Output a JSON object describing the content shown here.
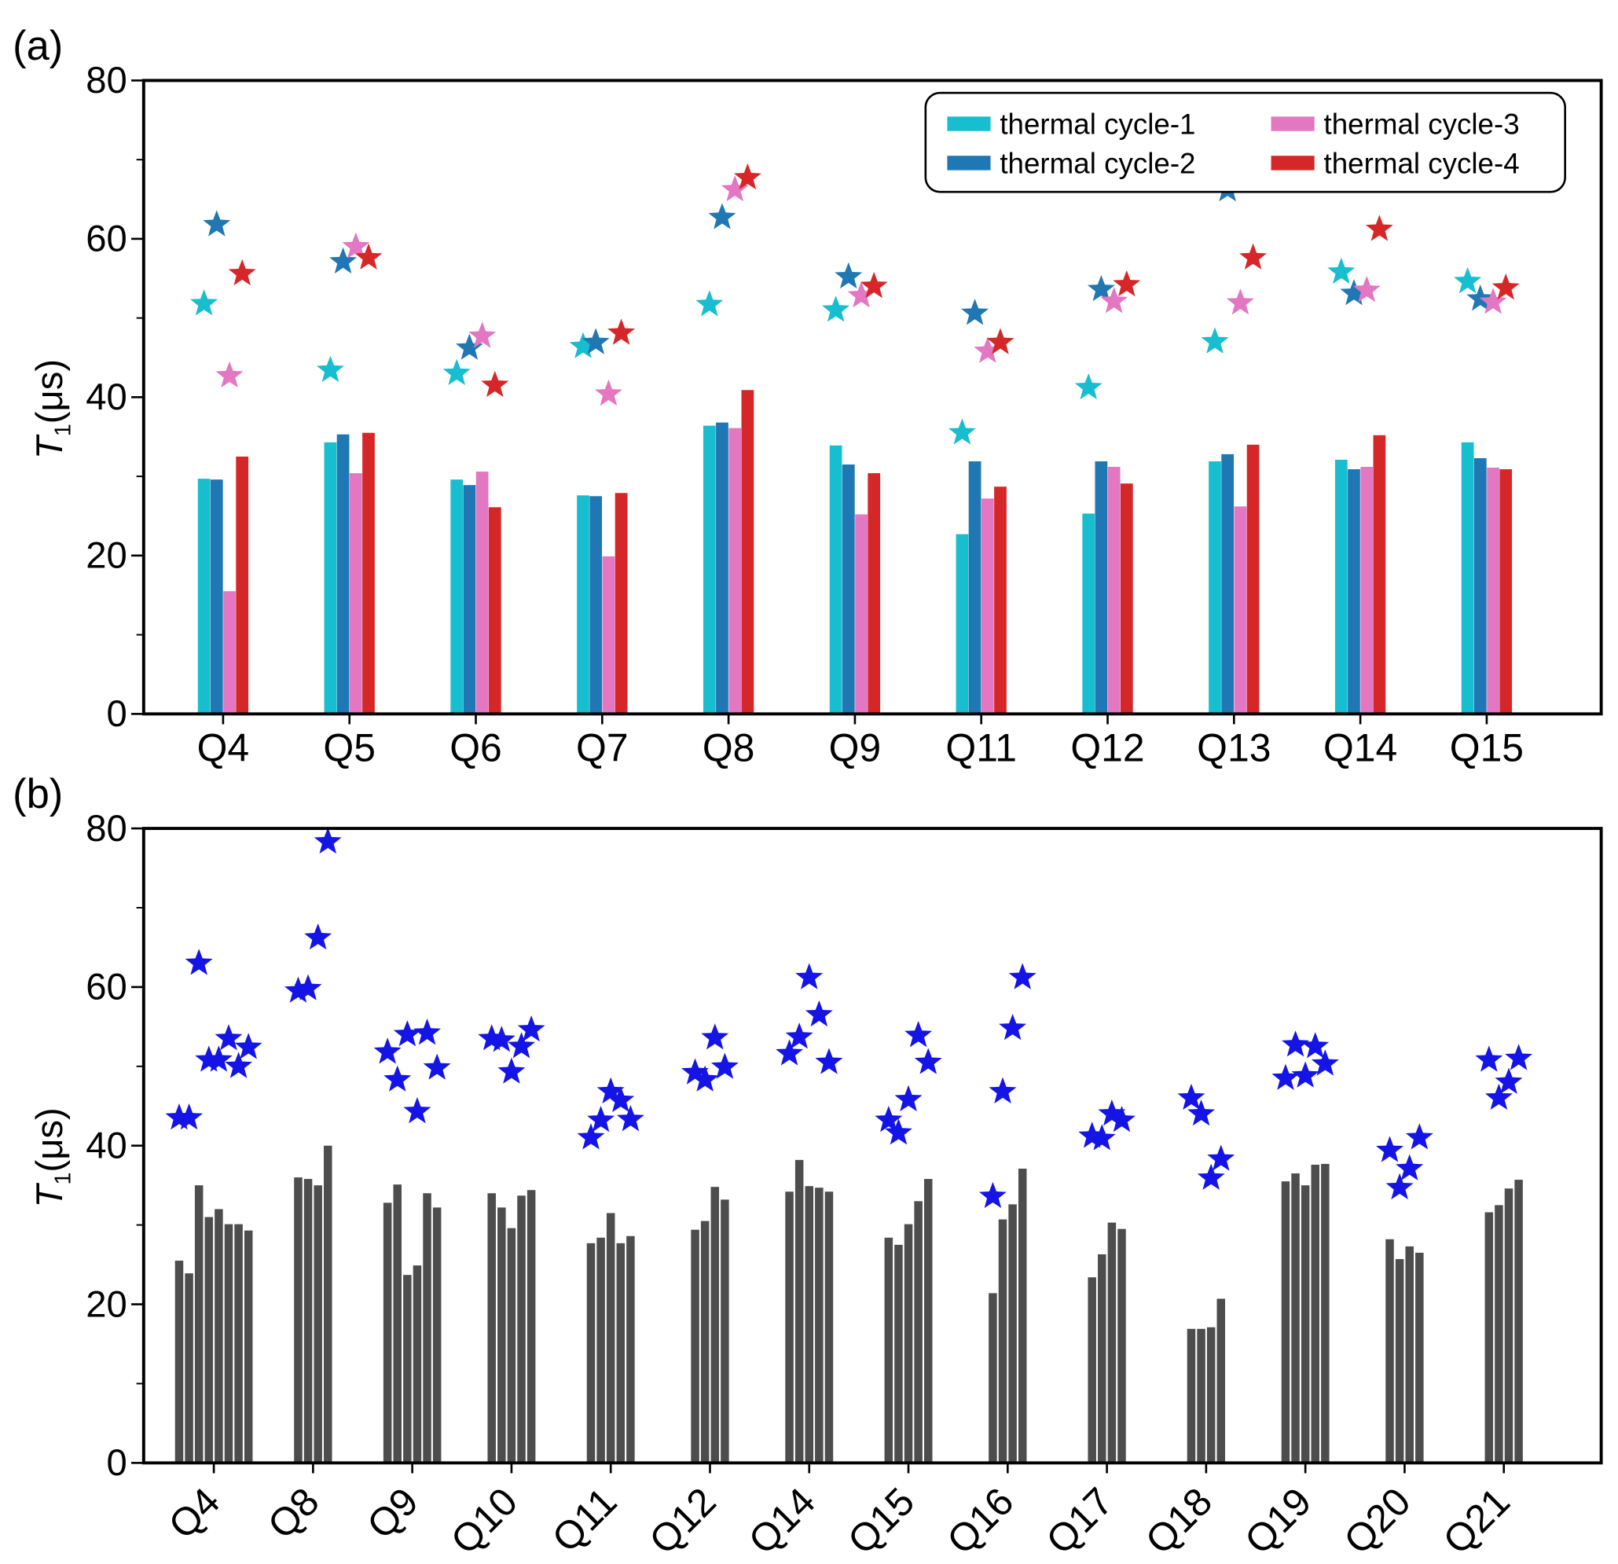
{
  "chart_data": [
    {
      "panel_label": "(a)",
      "type": "bar+scatter",
      "ylabel": "T",
      "ylabel_sub": "1",
      "ylabel_unit": "(μs)",
      "ylim": [
        0,
        80
      ],
      "yticks": [
        0,
        20,
        40,
        60,
        80
      ],
      "categories": [
        "Q4",
        "Q5",
        "Q6",
        "Q7",
        "Q8",
        "Q9",
        "Q11",
        "Q12",
        "Q13",
        "Q14",
        "Q15"
      ],
      "legend_position": "top-right",
      "series": [
        {
          "name": "thermal cycle-1",
          "color": "#17becf",
          "bars": [
            29.7,
            34.3,
            29.6,
            27.6,
            36.4,
            33.9,
            22.7,
            25.3,
            31.9,
            32.1,
            34.3
          ],
          "stars": [
            51.8,
            43.4,
            43.0,
            46.4,
            51.7,
            51.0,
            35.5,
            41.2,
            47.0,
            55.8,
            54.6
          ]
        },
        {
          "name": "thermal cycle-2",
          "color": "#1f77b4",
          "bars": [
            29.6,
            35.3,
            28.9,
            27.5,
            36.8,
            31.5,
            31.9,
            31.9,
            32.8,
            30.9,
            32.3
          ],
          "stars": [
            61.8,
            57.1,
            46.2,
            46.9,
            62.7,
            55.2,
            50.6,
            53.6,
            66.2,
            53.1,
            52.4
          ]
        },
        {
          "name": "thermal cycle-3",
          "color": "#e377c2",
          "bars": [
            15.5,
            30.4,
            30.6,
            19.9,
            36.1,
            25.2,
            27.2,
            31.2,
            26.2,
            31.2,
            31.1
          ],
          "stars": [
            42.7,
            59.0,
            47.7,
            40.4,
            66.2,
            52.8,
            45.8,
            52.1,
            51.9,
            53.5,
            52.0
          ]
        },
        {
          "name": "thermal cycle-4",
          "color": "#d62728",
          "bars": [
            32.5,
            35.5,
            26.1,
            27.9,
            40.9,
            30.4,
            28.7,
            29.1,
            34.0,
            35.2,
            30.9
          ],
          "stars": [
            55.6,
            57.6,
            41.5,
            48.1,
            67.7,
            54.0,
            46.9,
            54.2,
            57.6,
            61.2,
            53.8
          ]
        }
      ]
    },
    {
      "panel_label": "(b)",
      "type": "bar+scatter",
      "ylabel": "T",
      "ylabel_sub": "1",
      "ylabel_unit": "(μs)",
      "ylim": [
        0,
        80
      ],
      "yticks": [
        0,
        20,
        40,
        60,
        80
      ],
      "bar_color": "#4d4d4d",
      "star_color": "#1414e6",
      "groups": [
        {
          "label": "Q4",
          "bars": [
            25.5,
            23.9,
            35.0,
            31.0,
            32.0,
            30.1,
            30.1,
            29.3
          ],
          "stars": [
            43.5,
            43.5,
            63.0,
            50.8,
            50.8,
            53.5,
            50.0,
            52.4
          ]
        },
        {
          "label": "Q8",
          "bars": [
            36.0,
            35.8,
            35.0,
            40.0
          ],
          "stars": [
            59.5,
            59.8,
            66.2,
            78.3
          ]
        },
        {
          "label": "Q9",
          "bars": [
            32.8,
            35.1,
            23.7,
            24.9,
            34.0,
            32.2
          ],
          "stars": [
            51.8,
            48.3,
            54.0,
            44.3,
            54.2,
            49.8
          ]
        },
        {
          "label": "Q10",
          "bars": [
            34.0,
            32.2,
            29.6,
            33.7,
            34.4
          ],
          "stars": [
            53.5,
            53.3,
            49.3,
            52.5,
            54.6
          ]
        },
        {
          "label": "Q11",
          "bars": [
            27.7,
            28.4,
            31.5,
            27.7,
            28.6
          ],
          "stars": [
            41.0,
            43.2,
            46.8,
            45.7,
            43.3
          ]
        },
        {
          "label": "Q12",
          "bars": [
            29.4,
            30.5,
            34.8,
            33.2
          ],
          "stars": [
            49.2,
            48.3,
            53.6,
            49.9
          ]
        },
        {
          "label": "Q14",
          "bars": [
            34.2,
            38.2,
            34.9,
            34.7,
            34.2
          ],
          "stars": [
            51.6,
            53.7,
            61.2,
            56.5,
            50.5
          ]
        },
        {
          "label": "Q15",
          "bars": [
            28.4,
            27.5,
            30.1,
            33.0,
            35.8
          ],
          "stars": [
            43.2,
            41.6,
            45.8,
            53.9,
            50.5
          ]
        },
        {
          "label": "Q16",
          "bars": [
            21.4,
            30.7,
            32.6,
            37.1
          ],
          "stars": [
            33.6,
            46.8,
            54.8,
            61.2
          ]
        },
        {
          "label": "Q17",
          "bars": [
            23.4,
            26.3,
            30.3,
            29.5
          ],
          "stars": [
            41.2,
            40.9,
            44.0,
            43.2
          ]
        },
        {
          "label": "Q18",
          "bars": [
            16.9,
            16.9,
            17.1,
            20.7
          ],
          "stars": [
            46.0,
            44.0,
            35.9,
            38.3
          ]
        },
        {
          "label": "Q19",
          "bars": [
            35.5,
            36.5,
            35.0,
            37.6,
            37.7
          ],
          "stars": [
            48.5,
            52.7,
            48.8,
            52.5,
            50.3
          ]
        },
        {
          "label": "Q20",
          "bars": [
            28.2,
            25.7,
            27.3,
            26.5
          ],
          "stars": [
            39.4,
            34.7,
            37.1,
            41.0
          ]
        },
        {
          "label": "Q21",
          "bars": [
            31.6,
            32.5,
            34.6,
            35.7
          ],
          "stars": [
            50.8,
            46.0,
            48.0,
            51.0
          ]
        }
      ]
    }
  ]
}
